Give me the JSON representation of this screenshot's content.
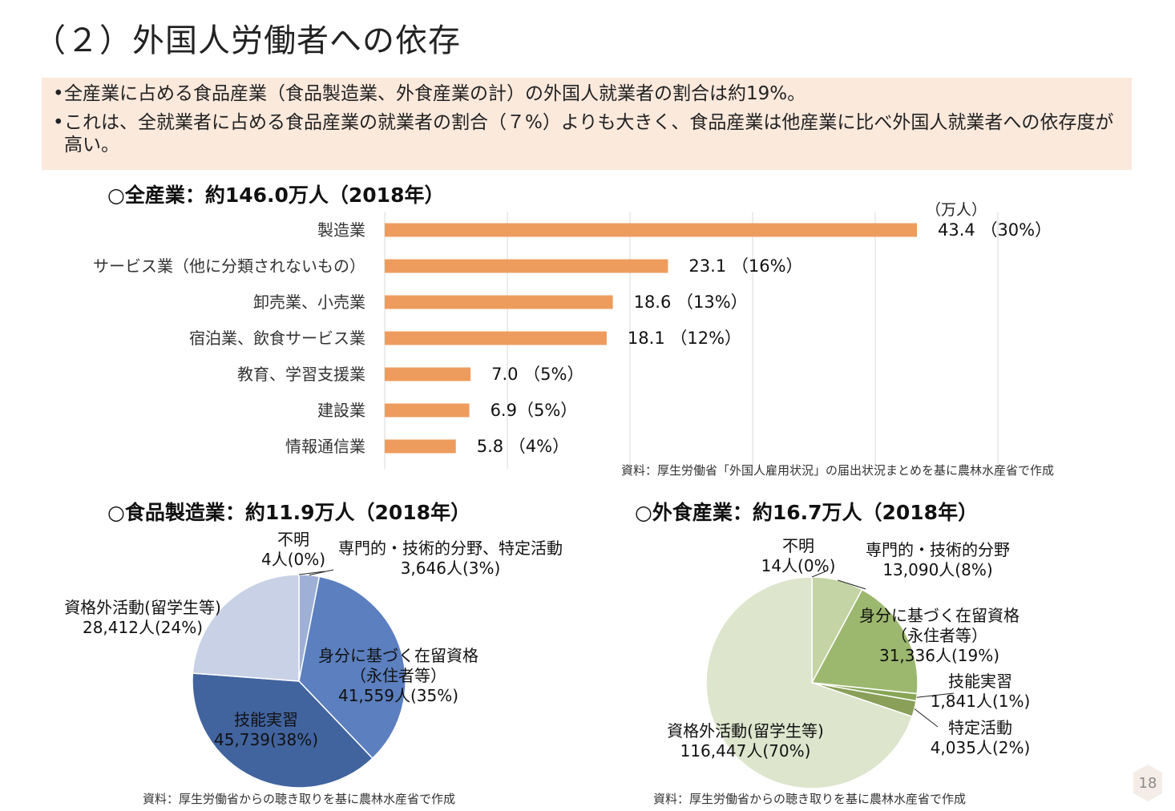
{
  "page": {
    "title": "（２）外国人労働者への依存",
    "page_number": "18"
  },
  "summary": {
    "bullets": [
      "全産業に占める食品産業（食品製造業、外食産業の計）の外国人就業者の割合は約19%。",
      "これは、全就業者に占める食品産業の就業者の割合（７%）よりも大きく、食品産業は他産業に比べ外国人就業者への依存度が高い。"
    ],
    "bullet_symbol": "•"
  },
  "colors": {
    "bar": "#ed9c5e",
    "summary_bg": "#fbe9dc",
    "pie_blue": [
      "#c8d1e6",
      "#9fb0d6",
      "#5b7fbf",
      "#41649f"
    ],
    "pie_green": [
      "#dde5cd",
      "#c4d4a4",
      "#9cb86f",
      "#86a556",
      "#8a9f58"
    ]
  },
  "chart_data": [
    {
      "type": "bar",
      "orientation": "horizontal",
      "title": "○全産業：約146.0万人（2018年）",
      "unit_label": "（万人）",
      "categories": [
        "製造業",
        "サービス業（他に分類されないもの）",
        "卸売業、小売業",
        "宿泊業、飲食サービス業",
        "教育、学習支援業",
        "建設業",
        "情報通信業"
      ],
      "values": [
        43.4,
        23.1,
        18.6,
        18.1,
        7.0,
        6.9,
        5.8
      ],
      "data_labels": [
        "43.4 （30%）",
        "23.1 （16%）",
        "18.6 （13%）",
        "18.1 （12%）",
        "7.0 （5%）",
        "6.9（5%）",
        "5.8 （4%）"
      ],
      "xlim": [
        0,
        50
      ],
      "grid": true,
      "source": "資料：厚生労働省「外国人雇用状況」の届出状況まとめを基に農林水産省で作成"
    },
    {
      "type": "pie",
      "title": "○食品製造業：約11.9万人（2018年）",
      "slices": [
        {
          "label": "不明",
          "value": 4,
          "value_label": "4人(0%)"
        },
        {
          "label": "専門的・技術的分野、特定活動",
          "value": 3646,
          "value_label": "3,646人(3%)"
        },
        {
          "label": "身分に基づく在留資格",
          "sub_label": "（永住者等）",
          "value": 41559,
          "value_label": "41,559人(35%)"
        },
        {
          "label": "技能実習",
          "value": 45739,
          "value_label": "45,739(38%)"
        },
        {
          "label": "資格外活動(留学生等)",
          "value": 28412,
          "value_label": "28,412人(24%)"
        }
      ],
      "source": "資料：厚生労働省からの聴き取りを基に農林水産省で作成"
    },
    {
      "type": "pie",
      "title": "○外食産業：約16.7万人（2018年）",
      "slices": [
        {
          "label": "不明",
          "value": 14,
          "value_label": "14人(0%)"
        },
        {
          "label": "専門的・技術的分野",
          "value": 13090,
          "value_label": "13,090人(8%)"
        },
        {
          "label": "身分に基づく在留資格",
          "sub_label": "（永住者等）",
          "value": 31336,
          "value_label": "31,336人(19%)"
        },
        {
          "label": "技能実習",
          "value": 1841,
          "value_label": "1,841人(1%)"
        },
        {
          "label": "特定活動",
          "value": 4035,
          "value_label": "4,035人(2%)"
        },
        {
          "label": "資格外活動(留学生等)",
          "value": 116447,
          "value_label": "116,447人(70%)"
        }
      ],
      "source": "資料：厚生労働省からの聴き取りを基に農林水産省で作成"
    }
  ]
}
